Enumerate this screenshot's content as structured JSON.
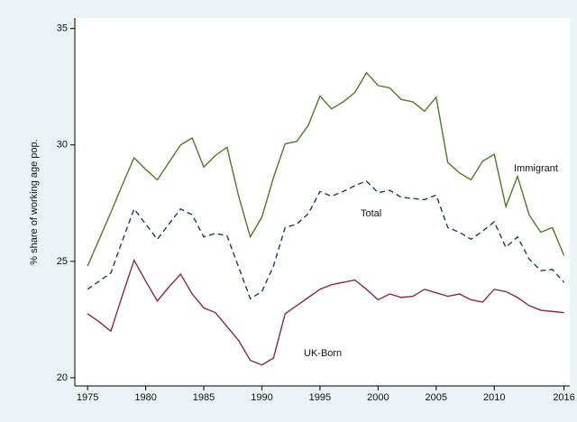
{
  "chart_data": {
    "type": "line",
    "ylabel": "% share of working age pop.",
    "x": [
      1975,
      1976,
      1977,
      1978,
      1979,
      1980,
      1981,
      1982,
      1983,
      1984,
      1985,
      1986,
      1987,
      1988,
      1989,
      1990,
      1991,
      1992,
      1993,
      1994,
      1995,
      1996,
      1997,
      1998,
      1999,
      2000,
      2001,
      2002,
      2003,
      2004,
      2005,
      2006,
      2007,
      2008,
      2009,
      2010,
      2011,
      2012,
      2013,
      2014,
      2015,
      2016
    ],
    "series": [
      {
        "name": "Immigrant",
        "color": "#4e7a27",
        "style": "solid",
        "values": [
          24.8,
          25.95,
          27.1,
          28.3,
          29.45,
          28.95,
          28.5,
          29.25,
          30.0,
          30.3,
          29.05,
          29.55,
          29.9,
          27.8,
          26.05,
          26.9,
          28.6,
          30.05,
          30.15,
          30.85,
          32.1,
          31.55,
          31.85,
          32.25,
          33.1,
          32.55,
          32.45,
          31.95,
          31.85,
          31.45,
          32.05,
          29.25,
          28.8,
          28.5,
          29.3,
          29.6,
          27.35,
          28.65,
          27.0,
          26.25,
          26.45,
          25.25
        ]
      },
      {
        "name": "Total",
        "color": "#1a3a6b",
        "style": "dashed",
        "values": [
          23.8,
          24.15,
          24.5,
          25.9,
          27.25,
          26.6,
          25.95,
          26.6,
          27.25,
          27.0,
          26.05,
          26.2,
          26.1,
          24.75,
          23.4,
          23.7,
          24.8,
          26.45,
          26.6,
          27.05,
          28.0,
          27.8,
          28.0,
          28.25,
          28.45,
          27.95,
          28.05,
          27.75,
          27.7,
          27.65,
          27.85,
          26.45,
          26.25,
          25.95,
          26.3,
          26.7,
          25.6,
          26.05,
          25.1,
          24.6,
          24.65,
          24.1
        ]
      },
      {
        "name": "UK-Born",
        "color": "#8b2942",
        "style": "solid",
        "values": [
          22.75,
          22.4,
          22.0,
          23.55,
          25.05,
          24.15,
          23.3,
          23.9,
          24.45,
          23.6,
          23.0,
          22.8,
          22.2,
          21.6,
          20.75,
          20.55,
          20.85,
          22.75,
          23.1,
          23.45,
          23.8,
          24.0,
          24.1,
          24.2,
          23.8,
          23.35,
          23.6,
          23.45,
          23.5,
          23.8,
          23.65,
          23.5,
          23.6,
          23.35,
          23.25,
          23.8,
          23.7,
          23.45,
          23.1,
          22.9,
          22.85,
          22.8
        ]
      }
    ],
    "xlim": [
      1973.9,
      2016.5
    ],
    "xticks": [
      1975,
      1980,
      1985,
      1990,
      1995,
      2000,
      2005,
      2010,
      2016
    ],
    "ylim": [
      19.65,
      35.45
    ],
    "yticks": [
      20,
      25,
      30,
      35
    ],
    "grid": false
  }
}
